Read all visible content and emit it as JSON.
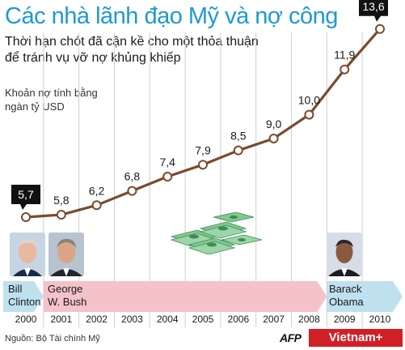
{
  "title": "Các nhà lãnh đạo Mỹ và nợ công",
  "subtitle_lines": [
    "Thời hạn chót đã cận kề cho một thỏa thuận",
    "để tránh vụ vỡ nợ khủng khiếp"
  ],
  "unit_lines": [
    "Khoản nợ tính bằng",
    "ngàn tỷ USD"
  ],
  "source": "Nguồn: Bộ Tài chính Mỹ",
  "credits": {
    "afp": "AFP",
    "vietnam": "Vietnam+"
  },
  "colors": {
    "title": "#1e9ad0",
    "line": "#7a4b2e",
    "bar_pink": "#f4c2c8",
    "bar_blue": "#bfe0ef",
    "grid": "#cfcfcf",
    "callout_bg": "#111111"
  },
  "presidents": [
    {
      "name_lines": [
        "Bill",
        "Clinton"
      ],
      "from": "2000",
      "to": "2001",
      "icon": "portrait-clinton"
    },
    {
      "name_lines": [
        "George",
        "W. Bush"
      ],
      "from": "2001",
      "to": "2009",
      "icon": "portrait-bush"
    },
    {
      "name_lines": [
        "Barack",
        "Obama"
      ],
      "from": "2009",
      "to": "2010",
      "icon": "portrait-obama"
    }
  ],
  "chart_data": {
    "type": "line",
    "title": "Các nhà lãnh đạo Mỹ và nợ công",
    "ylabel": "Khoản nợ tính bằng ngàn tỷ USD",
    "xlabel": "",
    "categories": [
      "2000",
      "2001",
      "2002",
      "2003",
      "2004",
      "2005",
      "2006",
      "2007",
      "2008",
      "2009",
      "2010"
    ],
    "series": [
      {
        "values": [
          5.7,
          5.8,
          6.2,
          6.8,
          7.4,
          7.9,
          8.5,
          9.0,
          10.0,
          11.9,
          13.6
        ]
      }
    ],
    "labels": [
      "5,7",
      "5,8",
      "6,2",
      "6,8",
      "7,4",
      "7,9",
      "8,5",
      "9,0",
      "10,0",
      "11,9",
      "13,6"
    ],
    "highlighted": [
      "2000",
      "2010"
    ],
    "grid": "vertical"
  }
}
